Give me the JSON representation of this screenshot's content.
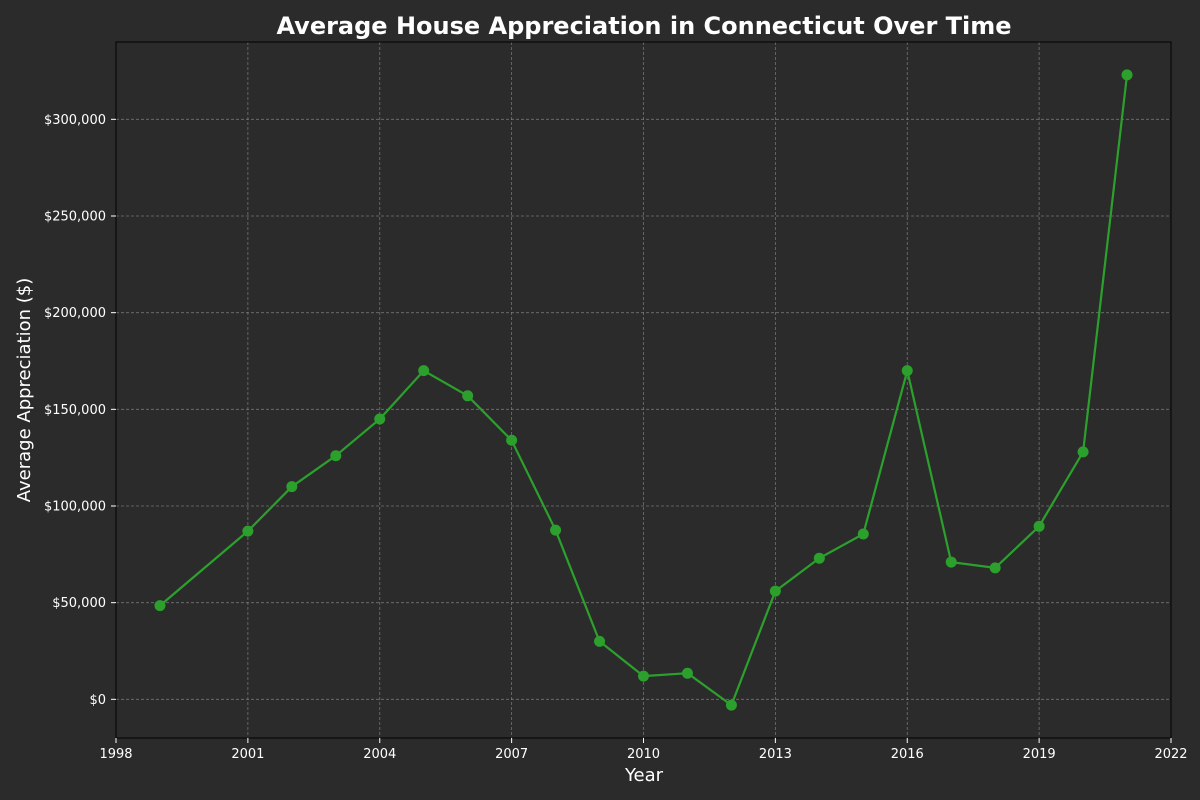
{
  "chart_data": {
    "type": "line",
    "title": "Average House Appreciation in Connecticut Over Time",
    "xlabel": "Year",
    "ylabel": "Average Appreciation ($)",
    "xlim": [
      1998,
      2022
    ],
    "ylim": [
      -20000,
      340000
    ],
    "x_ticks": [
      1998,
      2001,
      2004,
      2007,
      2010,
      2013,
      2016,
      2019,
      2022
    ],
    "y_ticks": [
      {
        "value": 0,
        "label": "$0"
      },
      {
        "value": 50000,
        "label": "$50,000"
      },
      {
        "value": 100000,
        "label": "$100,000"
      },
      {
        "value": 150000,
        "label": "$150,000"
      },
      {
        "value": 200000,
        "label": "$200,000"
      },
      {
        "value": 250000,
        "label": "$250,000"
      },
      {
        "value": 300000,
        "label": "$300,000"
      }
    ],
    "grid": true,
    "series": [
      {
        "color": "#2ca02c",
        "points": [
          {
            "x": 1999,
            "y": 48500
          },
          {
            "x": 2001,
            "y": 87000
          },
          {
            "x": 2002,
            "y": 110000
          },
          {
            "x": 2003,
            "y": 126000
          },
          {
            "x": 2004,
            "y": 145000
          },
          {
            "x": 2005,
            "y": 170000
          },
          {
            "x": 2006,
            "y": 157000
          },
          {
            "x": 2007,
            "y": 134000
          },
          {
            "x": 2008,
            "y": 87500
          },
          {
            "x": 2009,
            "y": 30000
          },
          {
            "x": 2010,
            "y": 12000
          },
          {
            "x": 2011,
            "y": 13500
          },
          {
            "x": 2012,
            "y": -3000
          },
          {
            "x": 2013,
            "y": 56000
          },
          {
            "x": 2014,
            "y": 73000
          },
          {
            "x": 2015,
            "y": 85500
          },
          {
            "x": 2016,
            "y": 170000
          },
          {
            "x": 2017,
            "y": 71000
          },
          {
            "x": 2018,
            "y": 68000
          },
          {
            "x": 2019,
            "y": 89500
          },
          {
            "x": 2020,
            "y": 128000
          },
          {
            "x": 2021,
            "y": 323000
          }
        ]
      }
    ],
    "colors": {
      "background": "#2b2b2b",
      "text": "#ffffff",
      "grid": "#8a8a8a"
    }
  }
}
